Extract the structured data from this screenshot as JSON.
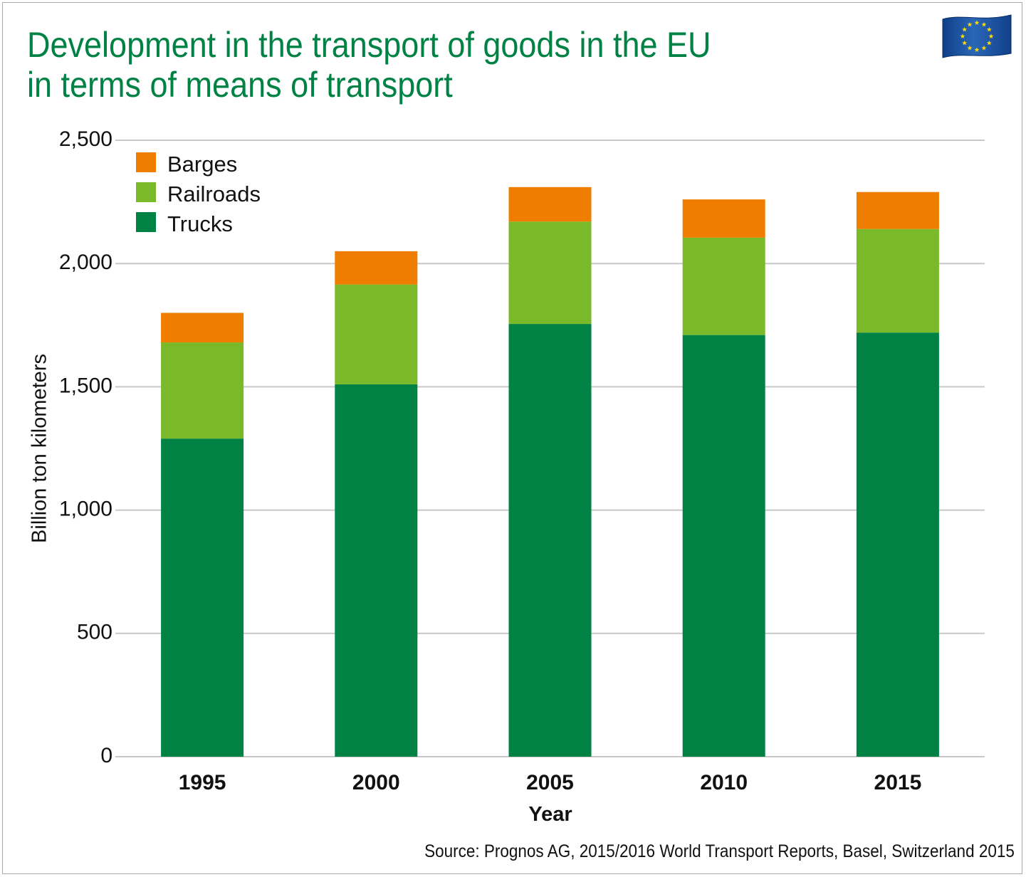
{
  "title": {
    "line1": "Development in the transport of goods in the EU",
    "line2": "in terms of means of transport"
  },
  "source": "Source: Prognos AG, 2015/2016 World Transport Reports, Basel, Switzerland 2015",
  "flag_icon": "eu-flag-icon",
  "colors": {
    "title": "#008244",
    "trucks": "#008244",
    "railroads": "#7ab929",
    "barges": "#ef7d00",
    "grid": "#c8c8c8",
    "flag_blue": "#1e56a6",
    "flag_star": "#ffdd00"
  },
  "chart_data": {
    "type": "bar",
    "stacked": true,
    "title": "Development in the transport of goods in the EU in terms of means of transport",
    "xlabel": "Year",
    "ylabel": "Billion ton kilometers",
    "ylim": [
      0,
      2500
    ],
    "yticks": [
      0,
      500,
      1000,
      1500,
      2000,
      2500
    ],
    "ytick_labels": [
      "0",
      "500",
      "1,000",
      "1,500",
      "2,000",
      "2,500"
    ],
    "grid": true,
    "legend_position": "top-left",
    "categories": [
      "1995",
      "2000",
      "2005",
      "2010",
      "2015"
    ],
    "series": [
      {
        "name": "Trucks",
        "color": "#008244",
        "values": [
          1290,
          1510,
          1755,
          1710,
          1720
        ]
      },
      {
        "name": "Railroads",
        "color": "#7ab929",
        "values": [
          390,
          405,
          415,
          395,
          420
        ]
      },
      {
        "name": "Barges",
        "color": "#ef7d00",
        "values": [
          120,
          135,
          140,
          155,
          150
        ]
      }
    ],
    "legend_order": [
      "Barges",
      "Railroads",
      "Trucks"
    ]
  }
}
